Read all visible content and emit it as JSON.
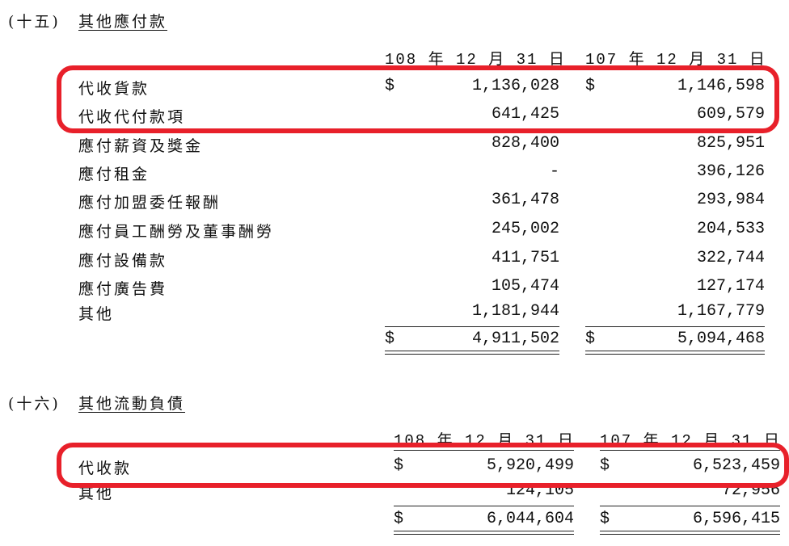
{
  "highlight_color": "#e8202a",
  "sections": [
    {
      "prefix": "(十五)",
      "title": "其他應付款",
      "headers": [
        "108 年 12 月 31 日",
        "107 年 12 月 31 日"
      ],
      "rows": [
        {
          "label": "代收貨款",
          "v1": "1,136,028",
          "v2": "1,146,598",
          "dollar": true
        },
        {
          "label": "代收代付款項",
          "v1": "641,425",
          "v2": "609,579"
        },
        {
          "label": "應付薪資及獎金",
          "v1": "828,400",
          "v2": "825,951"
        },
        {
          "label": "應付租金",
          "v1": "-",
          "v2": "396,126"
        },
        {
          "label": "應付加盟委任報酬",
          "v1": "361,478",
          "v2": "293,984"
        },
        {
          "label": "應付員工酬勞及董事酬勞",
          "v1": "245,002",
          "v2": "204,533"
        },
        {
          "label": "應付設備款",
          "v1": "411,751",
          "v2": "322,744"
        },
        {
          "label": "應付廣告費",
          "v1": "105,474",
          "v2": "127,174"
        },
        {
          "label": "其他",
          "v1": "1,181,944",
          "v2": "1,167,779"
        }
      ],
      "total": {
        "v1": "4,911,502",
        "v2": "5,094,468"
      },
      "currency": "$"
    },
    {
      "prefix": "(十六)",
      "title": "其他流動負債",
      "headers": [
        "108 年 12 月 31 日",
        "107 年 12 月 31 日"
      ],
      "rows": [
        {
          "label": "代收款",
          "v1": "5,920,499",
          "v2": "6,523,459",
          "dollar": true
        },
        {
          "label": "其他",
          "v1": "124,105",
          "v2": "72,956"
        }
      ],
      "total": {
        "v1": "6,044,604",
        "v2": "6,596,415"
      },
      "currency": "$"
    }
  ]
}
